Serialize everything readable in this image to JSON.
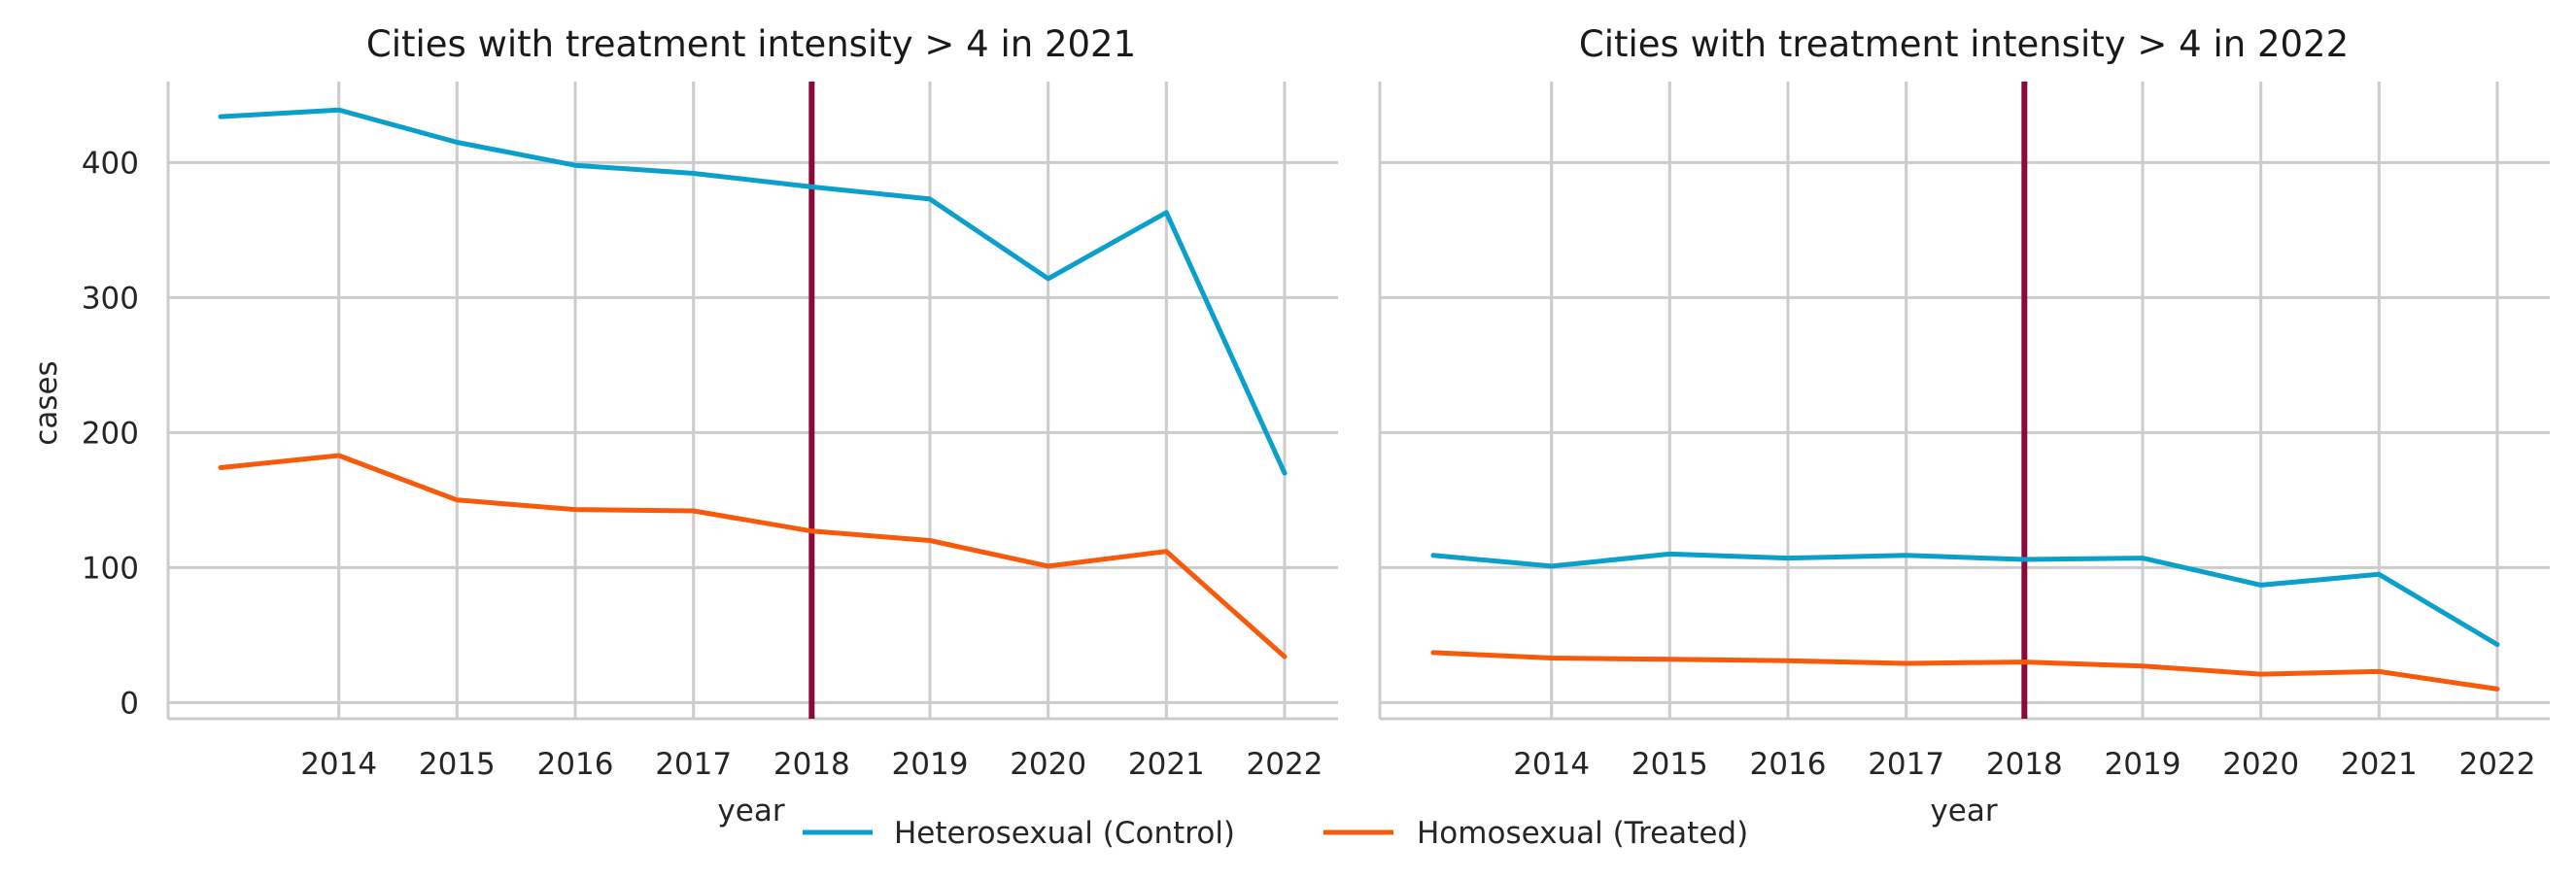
{
  "chart_data": [
    {
      "type": "line",
      "title": "Cities with treatment intensity > 4 in 2021",
      "xlabel": "year",
      "ylabel": "cases",
      "x": [
        2013,
        2014,
        2015,
        2016,
        2017,
        2018,
        2019,
        2020,
        2021,
        2022
      ],
      "xticks": [
        2014,
        2015,
        2016,
        2017,
        2018,
        2019,
        2020,
        2021,
        2022
      ],
      "xtick_labels": [
        "2014",
        "2015",
        "2016",
        "2017",
        "2018",
        "2019",
        "2020",
        "2021",
        "2022"
      ],
      "yticks": [
        0,
        100,
        200,
        300,
        400
      ],
      "ytick_labels": [
        "0",
        "100",
        "200",
        "300",
        "400"
      ],
      "xlim": [
        2013,
        2022
      ],
      "ylim": [
        -12,
        460
      ],
      "grid": true,
      "vline": 2018,
      "series": [
        {
          "name": "Heterosexual (Control)",
          "values": [
            434,
            439,
            415,
            398,
            392,
            382,
            373,
            314,
            363,
            170
          ]
        },
        {
          "name": "Homosexual (Treated)",
          "values": [
            174,
            183,
            150,
            143,
            142,
            127,
            120,
            101,
            112,
            34
          ]
        }
      ]
    },
    {
      "type": "line",
      "title": "Cities with treatment intensity > 4 in 2022",
      "xlabel": "year",
      "ylabel": "",
      "x": [
        2013,
        2014,
        2015,
        2016,
        2017,
        2018,
        2019,
        2020,
        2021,
        2022
      ],
      "xticks": [
        2014,
        2015,
        2016,
        2017,
        2018,
        2019,
        2020,
        2021,
        2022
      ],
      "xtick_labels": [
        "2014",
        "2015",
        "2016",
        "2017",
        "2018",
        "2019",
        "2020",
        "2021",
        "2022"
      ],
      "yticks": [
        0,
        100,
        200,
        300,
        400
      ],
      "ytick_labels": [],
      "xlim": [
        2013,
        2022
      ],
      "ylim": [
        -12,
        460
      ],
      "grid": true,
      "vline": 2018,
      "series": [
        {
          "name": "Heterosexual (Control)",
          "values": [
            109,
            101,
            110,
            107,
            109,
            106,
            107,
            87,
            95,
            43
          ]
        },
        {
          "name": "Homosexual (Treated)",
          "values": [
            37,
            33,
            32,
            31,
            29,
            30,
            27,
            21,
            23,
            10
          ]
        }
      ]
    }
  ],
  "legend": {
    "placement": "bottom-center",
    "items": [
      {
        "label": "Heterosexual (Control)",
        "color": "#0aa0cb"
      },
      {
        "label": "Homosexual (Treated)",
        "color": "#f75a0a"
      }
    ]
  },
  "colors": {
    "control": "#0aa0cb",
    "treated": "#f75a0a",
    "vline": "#8b0a3c",
    "grid": "#cccccc"
  }
}
